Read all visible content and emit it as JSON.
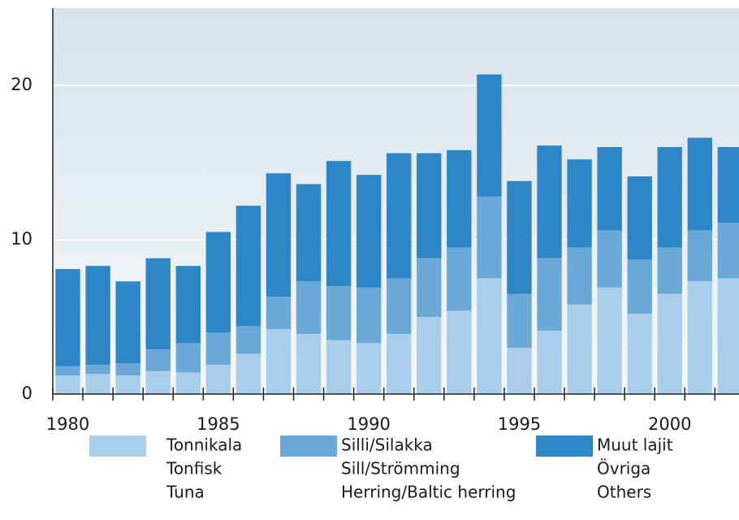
{
  "chart_data": {
    "type": "stacked_bar",
    "x": [
      1980,
      1981,
      1982,
      1983,
      1984,
      1985,
      1986,
      1987,
      1988,
      1989,
      1990,
      1991,
      1992,
      1993,
      1994,
      1995,
      1996,
      1997,
      1998,
      1999,
      2000,
      2001,
      2002
    ],
    "series": [
      {
        "name": "Tonnikala",
        "alt_names": [
          "Tonfisk",
          "Tuna"
        ],
        "color": "#a9cdea",
        "values": [
          1.2,
          1.3,
          1.2,
          1.5,
          1.4,
          1.9,
          2.6,
          4.2,
          3.9,
          3.5,
          3.3,
          3.9,
          5.0,
          5.4,
          7.5,
          3.0,
          4.1,
          5.8,
          6.9,
          5.2,
          6.5,
          7.3,
          7.5
        ]
      },
      {
        "name": "Silli/Silakka",
        "alt_names": [
          "Sill/Strömming",
          "Herring/Baltic herring"
        ],
        "color": "#6aa8d8",
        "values": [
          0.6,
          0.6,
          0.8,
          1.4,
          1.9,
          2.1,
          1.8,
          2.1,
          3.4,
          3.5,
          3.6,
          3.6,
          3.8,
          4.1,
          5.3,
          3.5,
          4.7,
          3.7,
          3.7,
          3.5,
          3.0,
          3.3,
          3.6
        ]
      },
      {
        "name": "Muut lajit",
        "alt_names": [
          "Övriga",
          "Others"
        ],
        "color": "#2e86c7",
        "values": [
          6.3,
          6.4,
          5.3,
          5.9,
          5.0,
          6.5,
          7.8,
          8.0,
          6.3,
          8.1,
          7.3,
          8.1,
          6.8,
          6.3,
          7.9,
          7.3,
          7.3,
          5.7,
          5.4,
          5.4,
          6.5,
          6.0,
          4.9
        ]
      }
    ],
    "xlim": [
      1979.5,
      2002.3
    ],
    "xticks": [
      1980,
      1985,
      1990,
      1995,
      2000
    ],
    "ylim": [
      0,
      25
    ],
    "yticks": [
      0,
      10,
      20
    ],
    "grid": true
  }
}
